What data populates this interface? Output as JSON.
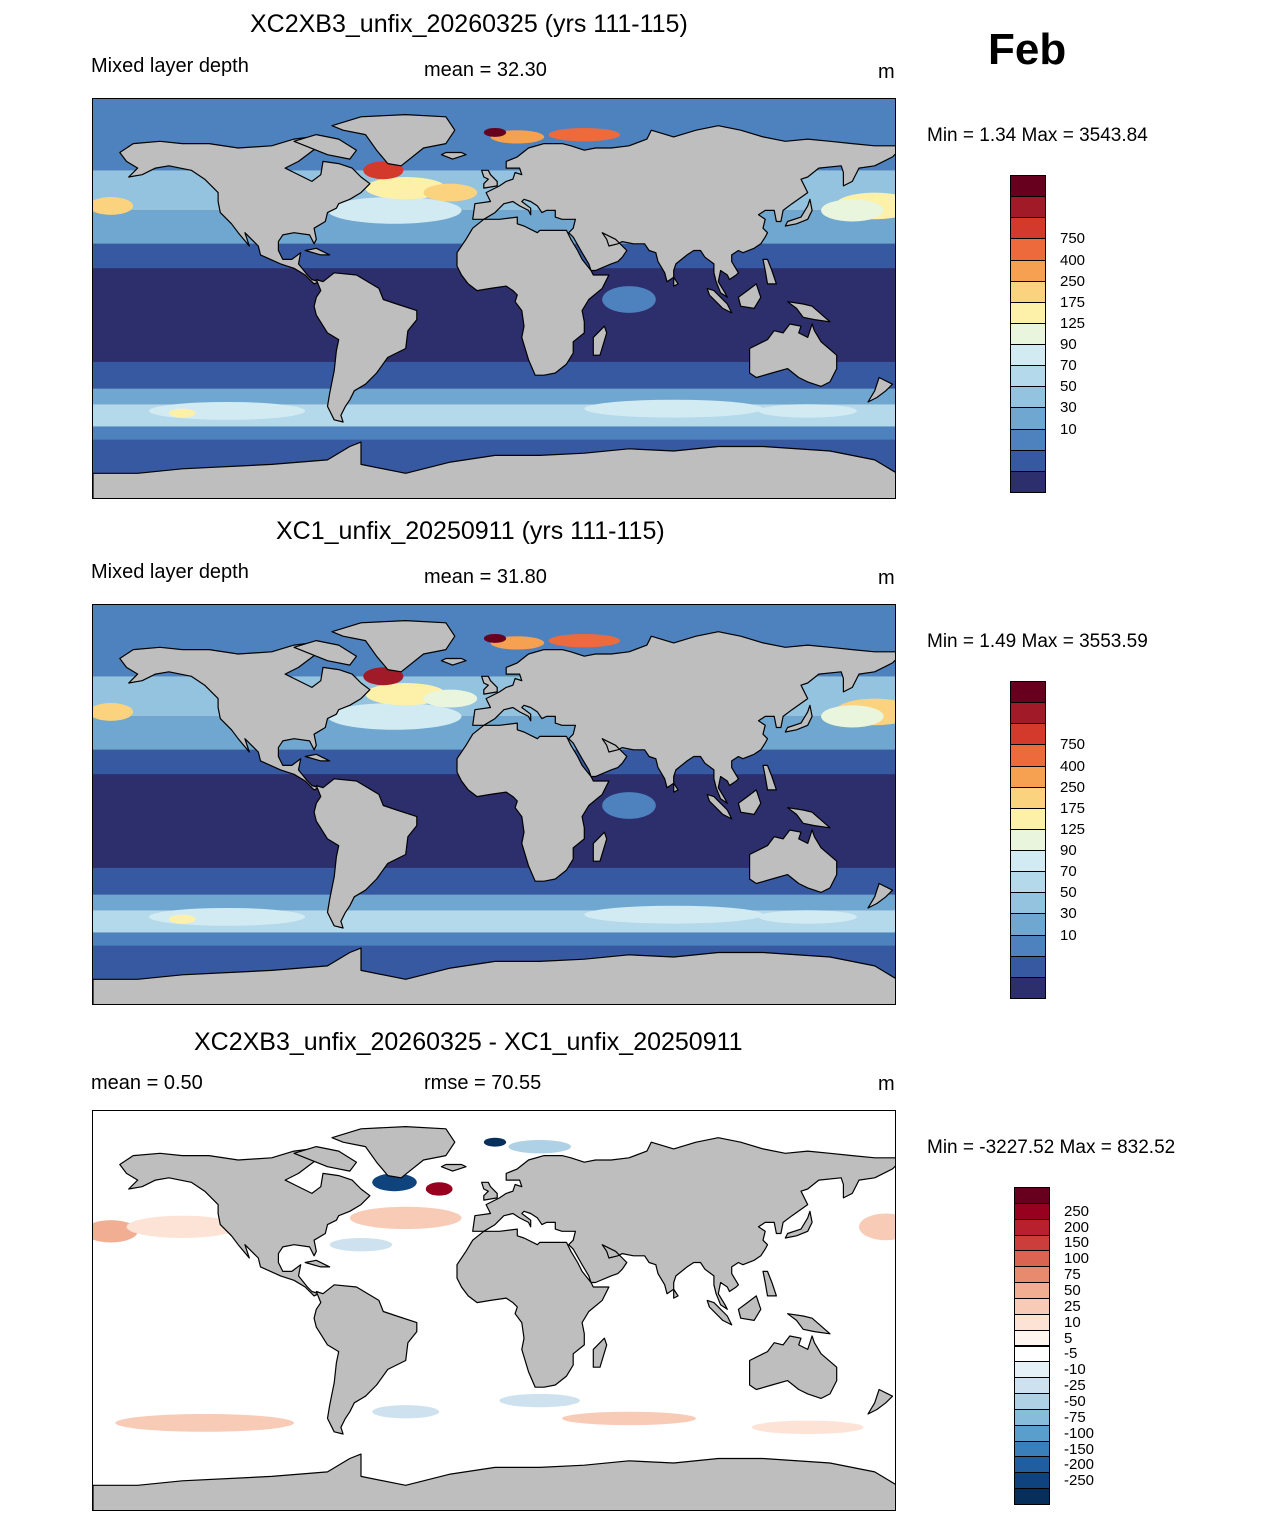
{
  "month_label": "Feb",
  "panels": [
    {
      "title": "XC2XB3_unfix_20260325 (yrs 111-115)",
      "left_label": "Mixed layer depth",
      "center_label": "mean =  32.30",
      "units": "m",
      "minmax": "Min =    1.34 Max = 3543.84",
      "variant": "abs1"
    },
    {
      "title": "XC1_unfix_20250911 (yrs 111-115)",
      "left_label": "Mixed layer depth",
      "center_label": "mean =  31.80",
      "units": "m",
      "minmax": "Min =    1.49 Max = 3553.59",
      "variant": "abs2"
    },
    {
      "title": "XC2XB3_unfix_20260325 - XC1_unfix_20250911",
      "left_label": "mean =   0.50",
      "center_label": "rmse =  70.55",
      "units": "m",
      "minmax": "Min = -3227.52 Max = 832.52",
      "variant": "diff"
    }
  ],
  "colorbar_abs": {
    "labels": [
      "750",
      "400",
      "250",
      "175",
      "125",
      "90",
      "70",
      "50",
      "30",
      "10"
    ],
    "colors": [
      "#67001f",
      "#a11a28",
      "#d33a2b",
      "#ec6a3c",
      "#f6a052",
      "#fbd37e",
      "#fdf1aa",
      "#e9f5dc",
      "#d2ebf3",
      "#b4d9ea",
      "#93c3de",
      "#6fa7d0",
      "#4d82bf",
      "#3759a2",
      "#2d2e6c"
    ]
  },
  "colorbar_diff": {
    "labels": [
      "250",
      "200",
      "150",
      "100",
      "75",
      "50",
      "25",
      "10",
      "5",
      "-5",
      "-10",
      "-25",
      "-50",
      "-75",
      "-100",
      "-150",
      "-200",
      "-250"
    ],
    "colors": [
      "#67001f",
      "#97001f",
      "#b8202d",
      "#cb3e3c",
      "#da6351",
      "#e88a6e",
      "#f2ae93",
      "#f8cbb6",
      "#fde3d6",
      "#fff5ef",
      "#ffffff",
      "#e6f0f7",
      "#cde2ee",
      "#aed1e5",
      "#87bcda",
      "#5a9ecb",
      "#3a7fba",
      "#215e9f",
      "#0f437e",
      "#062f5c"
    ]
  },
  "map_colors": {
    "land": "#bebebe",
    "deep_ocean": "#2d2e6c",
    "diff_background": "#ffffff"
  }
}
